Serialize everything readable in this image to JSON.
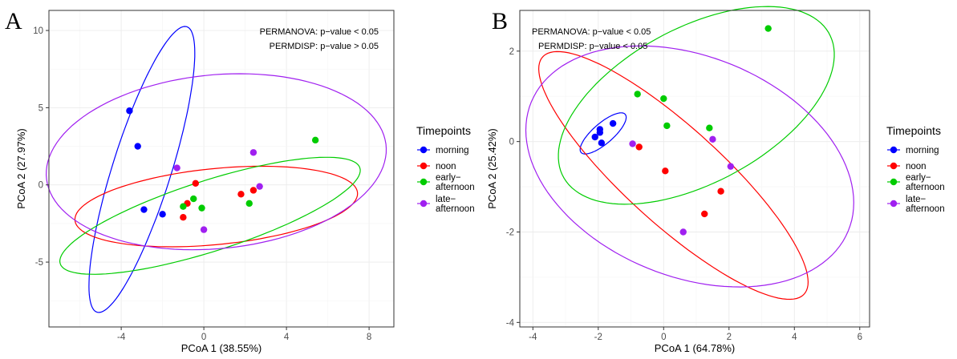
{
  "chart_data": [
    {
      "type": "scatter",
      "panel_label": "A",
      "xlabel": "PCoA 1 (38.55%)",
      "ylabel": "PCoA 2 (27.97%)",
      "xlim": [
        -7.5,
        9.2
      ],
      "ylim": [
        -9.2,
        11.3
      ],
      "xticks": [
        -4,
        0,
        4,
        8
      ],
      "yticks": [
        -5,
        0,
        5,
        10
      ],
      "grid": true,
      "annotations": [
        "PERMANOVA: p−value < 0.05",
        "PERMDISP: p−value > 0.05"
      ],
      "legend": {
        "title": "Timepoints",
        "position": "right",
        "entries": [
          [
            "morning"
          ],
          [
            "noon"
          ],
          [
            "early−",
            "afternoon"
          ],
          [
            "late−",
            "afternoon"
          ]
        ]
      },
      "series": [
        {
          "name": "morning",
          "color": "#0000ff",
          "points": [
            [
              -3.6,
              4.8
            ],
            [
              -3.2,
              2.5
            ],
            [
              -2.9,
              -1.6
            ],
            [
              -2.0,
              -1.9
            ]
          ],
          "ellipse": {
            "cx": -3.0,
            "cy": 1.0,
            "rx": 9.5,
            "ry": 1.45,
            "angle_deg": 77
          }
        },
        {
          "name": "noon",
          "color": "#ff0000",
          "points": [
            [
              -0.4,
              0.1
            ],
            [
              -1.0,
              -2.1
            ],
            [
              1.8,
              -0.6
            ],
            [
              2.4,
              -0.35
            ],
            [
              -0.8,
              -1.2
            ]
          ],
          "ellipse": {
            "cx": 0.6,
            "cy": -1.4,
            "rx": 6.9,
            "ry": 2.45,
            "angle_deg": 8
          }
        },
        {
          "name": "early−afternoon",
          "color": "#00cc00",
          "points": [
            [
              5.4,
              2.9
            ],
            [
              -0.5,
              -0.9
            ],
            [
              -1.0,
              -1.4
            ],
            [
              -0.1,
              -1.5
            ],
            [
              2.2,
              -1.2
            ]
          ],
          "ellipse": {
            "cx": 0.3,
            "cy": -2.0,
            "rx": 7.9,
            "ry": 2.2,
            "angle_deg": 24
          }
        },
        {
          "name": "late−afternoon",
          "color": "#a020f0",
          "points": [
            [
              -1.3,
              1.1
            ],
            [
              2.4,
              2.1
            ],
            [
              2.7,
              -0.1
            ],
            [
              0.0,
              -2.9
            ]
          ],
          "ellipse": {
            "cx": 0.6,
            "cy": 1.5,
            "rx": 8.3,
            "ry": 5.6,
            "angle_deg": 10
          }
        }
      ]
    },
    {
      "type": "scatter",
      "panel_label": "B",
      "xlabel": "PCoA 1 (64.78%)",
      "ylabel": "PCoA 2 (25.42%)",
      "xlim": [
        -4.4,
        6.3
      ],
      "ylim": [
        -4.1,
        2.9
      ],
      "xticks": [
        -4,
        -2,
        0,
        2,
        4,
        6
      ],
      "yticks": [
        -4,
        -2,
        0,
        2
      ],
      "grid": true,
      "annotations": [
        "PERMANOVA: p−value < 0.05",
        "PERMDISP: p−value < 0.05"
      ],
      "legend": {
        "title": "Timepoints",
        "position": "right",
        "entries": [
          [
            "morning"
          ],
          [
            "noon"
          ],
          [
            "early−",
            "afternoon"
          ],
          [
            "late−",
            "afternoon"
          ]
        ]
      },
      "series": [
        {
          "name": "morning",
          "color": "#0000ff",
          "points": [
            [
              -2.1,
              0.1
            ],
            [
              -1.95,
              0.2
            ],
            [
              -1.95,
              0.27
            ],
            [
              -1.9,
              -0.03
            ],
            [
              -1.55,
              0.4
            ]
          ],
          "ellipse": {
            "cx": -1.85,
            "cy": 0.18,
            "rx": 0.8,
            "ry": 0.25,
            "angle_deg": 30
          }
        },
        {
          "name": "noon",
          "color": "#ff0000",
          "points": [
            [
              -0.75,
              -0.12
            ],
            [
              0.05,
              -0.65
            ],
            [
              1.25,
              -1.6
            ],
            [
              1.75,
              -1.1
            ]
          ],
          "ellipse": {
            "cx": 0.3,
            "cy": -0.75,
            "rx": 4.8,
            "ry": 1.2,
            "angle_deg": -32
          }
        },
        {
          "name": "early−afternoon",
          "color": "#00cc00",
          "points": [
            [
              -0.8,
              1.05
            ],
            [
              0.0,
              0.95
            ],
            [
              0.1,
              0.35
            ],
            [
              1.4,
              0.3
            ],
            [
              3.2,
              2.5
            ]
          ],
          "ellipse": {
            "cx": 1.0,
            "cy": 0.8,
            "rx": 4.4,
            "ry": 1.8,
            "angle_deg": 18
          }
        },
        {
          "name": "late−afternoon",
          "color": "#a020f0",
          "points": [
            [
              -0.95,
              -0.05
            ],
            [
              1.5,
              0.05
            ],
            [
              2.05,
              -0.55
            ],
            [
              0.6,
              -2.0
            ]
          ],
          "ellipse": {
            "cx": 0.8,
            "cy": -0.55,
            "rx": 5.1,
            "ry": 2.5,
            "angle_deg": -12
          }
        }
      ]
    }
  ]
}
